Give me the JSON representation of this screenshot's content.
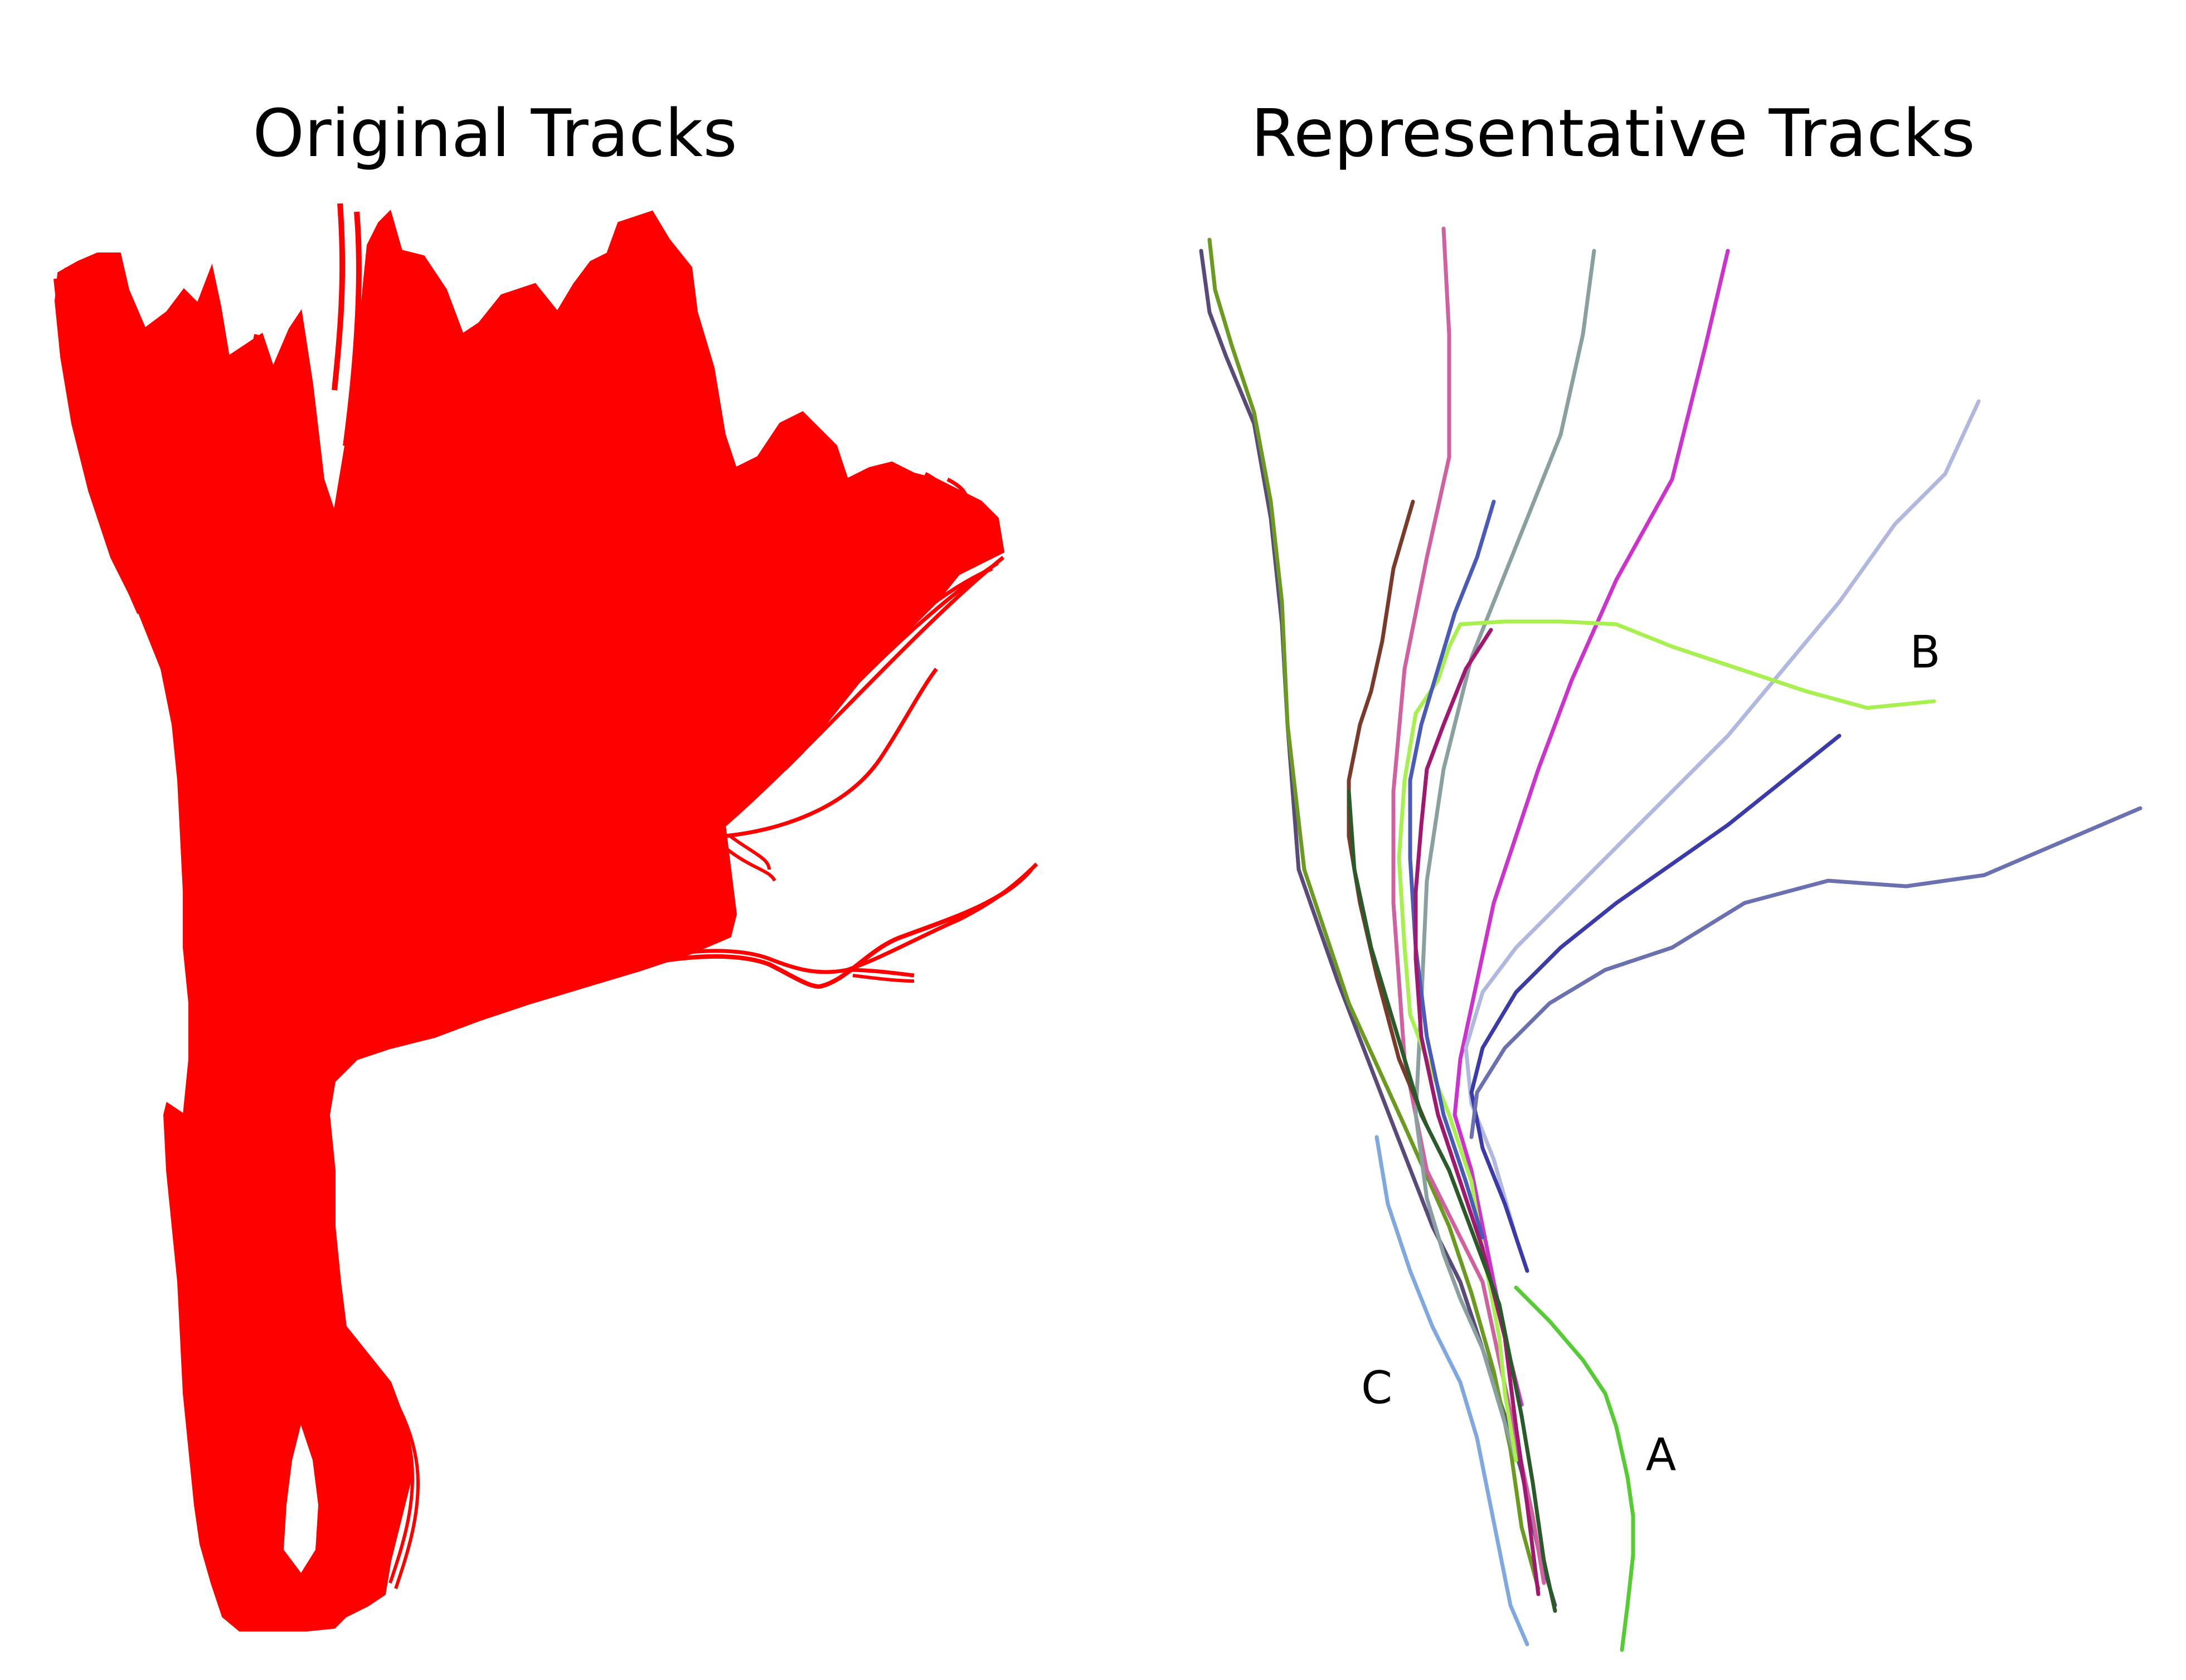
{
  "panels": {
    "left": {
      "title": "Original Tracks",
      "color": "#ff0000"
    },
    "right": {
      "title": "Representative Tracks",
      "labels": {
        "a": "A",
        "b": "B",
        "c": "C"
      },
      "track_colors": [
        "#5a4a7a",
        "#6a9a20",
        "#d060a0",
        "#8aa0a0",
        "#cc33cc",
        "#b0b8e0",
        "#3a3aa8",
        "#6a70b0",
        "#a8f050",
        "#7a3a2a",
        "#4a5ab8",
        "#a01870",
        "#80a8e0",
        "#55cc33",
        "#2a5a2a"
      ]
    }
  }
}
